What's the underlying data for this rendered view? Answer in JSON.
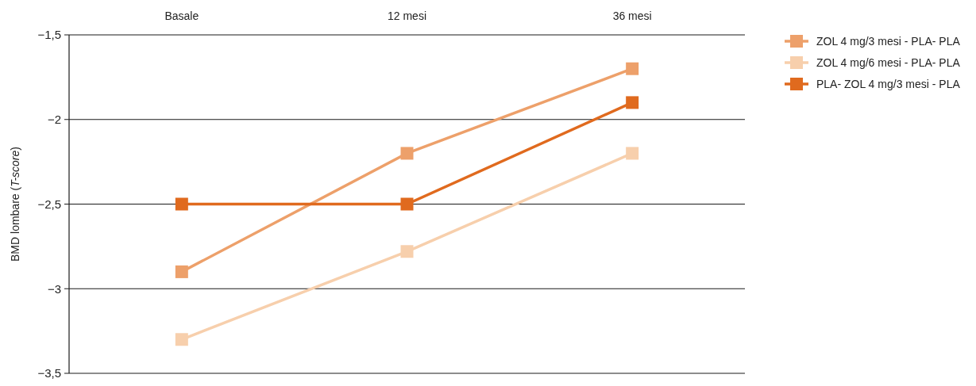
{
  "chart_data": {
    "type": "line",
    "ylabel": "BMD lombare (T-score)",
    "categories": [
      "Basale",
      "12 mesi",
      "36 mesi"
    ],
    "series": [
      {
        "name": "ZOL 4 mg/3 mesi - PLA- PLA",
        "color": "#eda06a",
        "values": [
          -2.9,
          -2.2,
          -1.7
        ]
      },
      {
        "name": "ZOL 4 mg/6 mesi - PLA- PLA",
        "color": "#f7cfac",
        "values": [
          -3.3,
          -2.78,
          -2.2
        ]
      },
      {
        "name": "PLA- ZOL 4 mg/3 mesi - PLA",
        "color": "#e06a1e",
        "values": [
          -2.5,
          -2.5,
          -1.9
        ]
      }
    ],
    "ylim": [
      -3.5,
      -1.5
    ],
    "yticks": [
      {
        "value": -3.5,
        "label": "−3,5"
      },
      {
        "value": -3,
        "label": "−3"
      },
      {
        "value": -2.5,
        "label": "−2,5"
      },
      {
        "value": -2,
        "label": "−2"
      },
      {
        "value": -1.5,
        "label": "−1,5"
      }
    ],
    "grid": "y",
    "legend": "top right",
    "marker": "square",
    "line_style": "solid"
  }
}
